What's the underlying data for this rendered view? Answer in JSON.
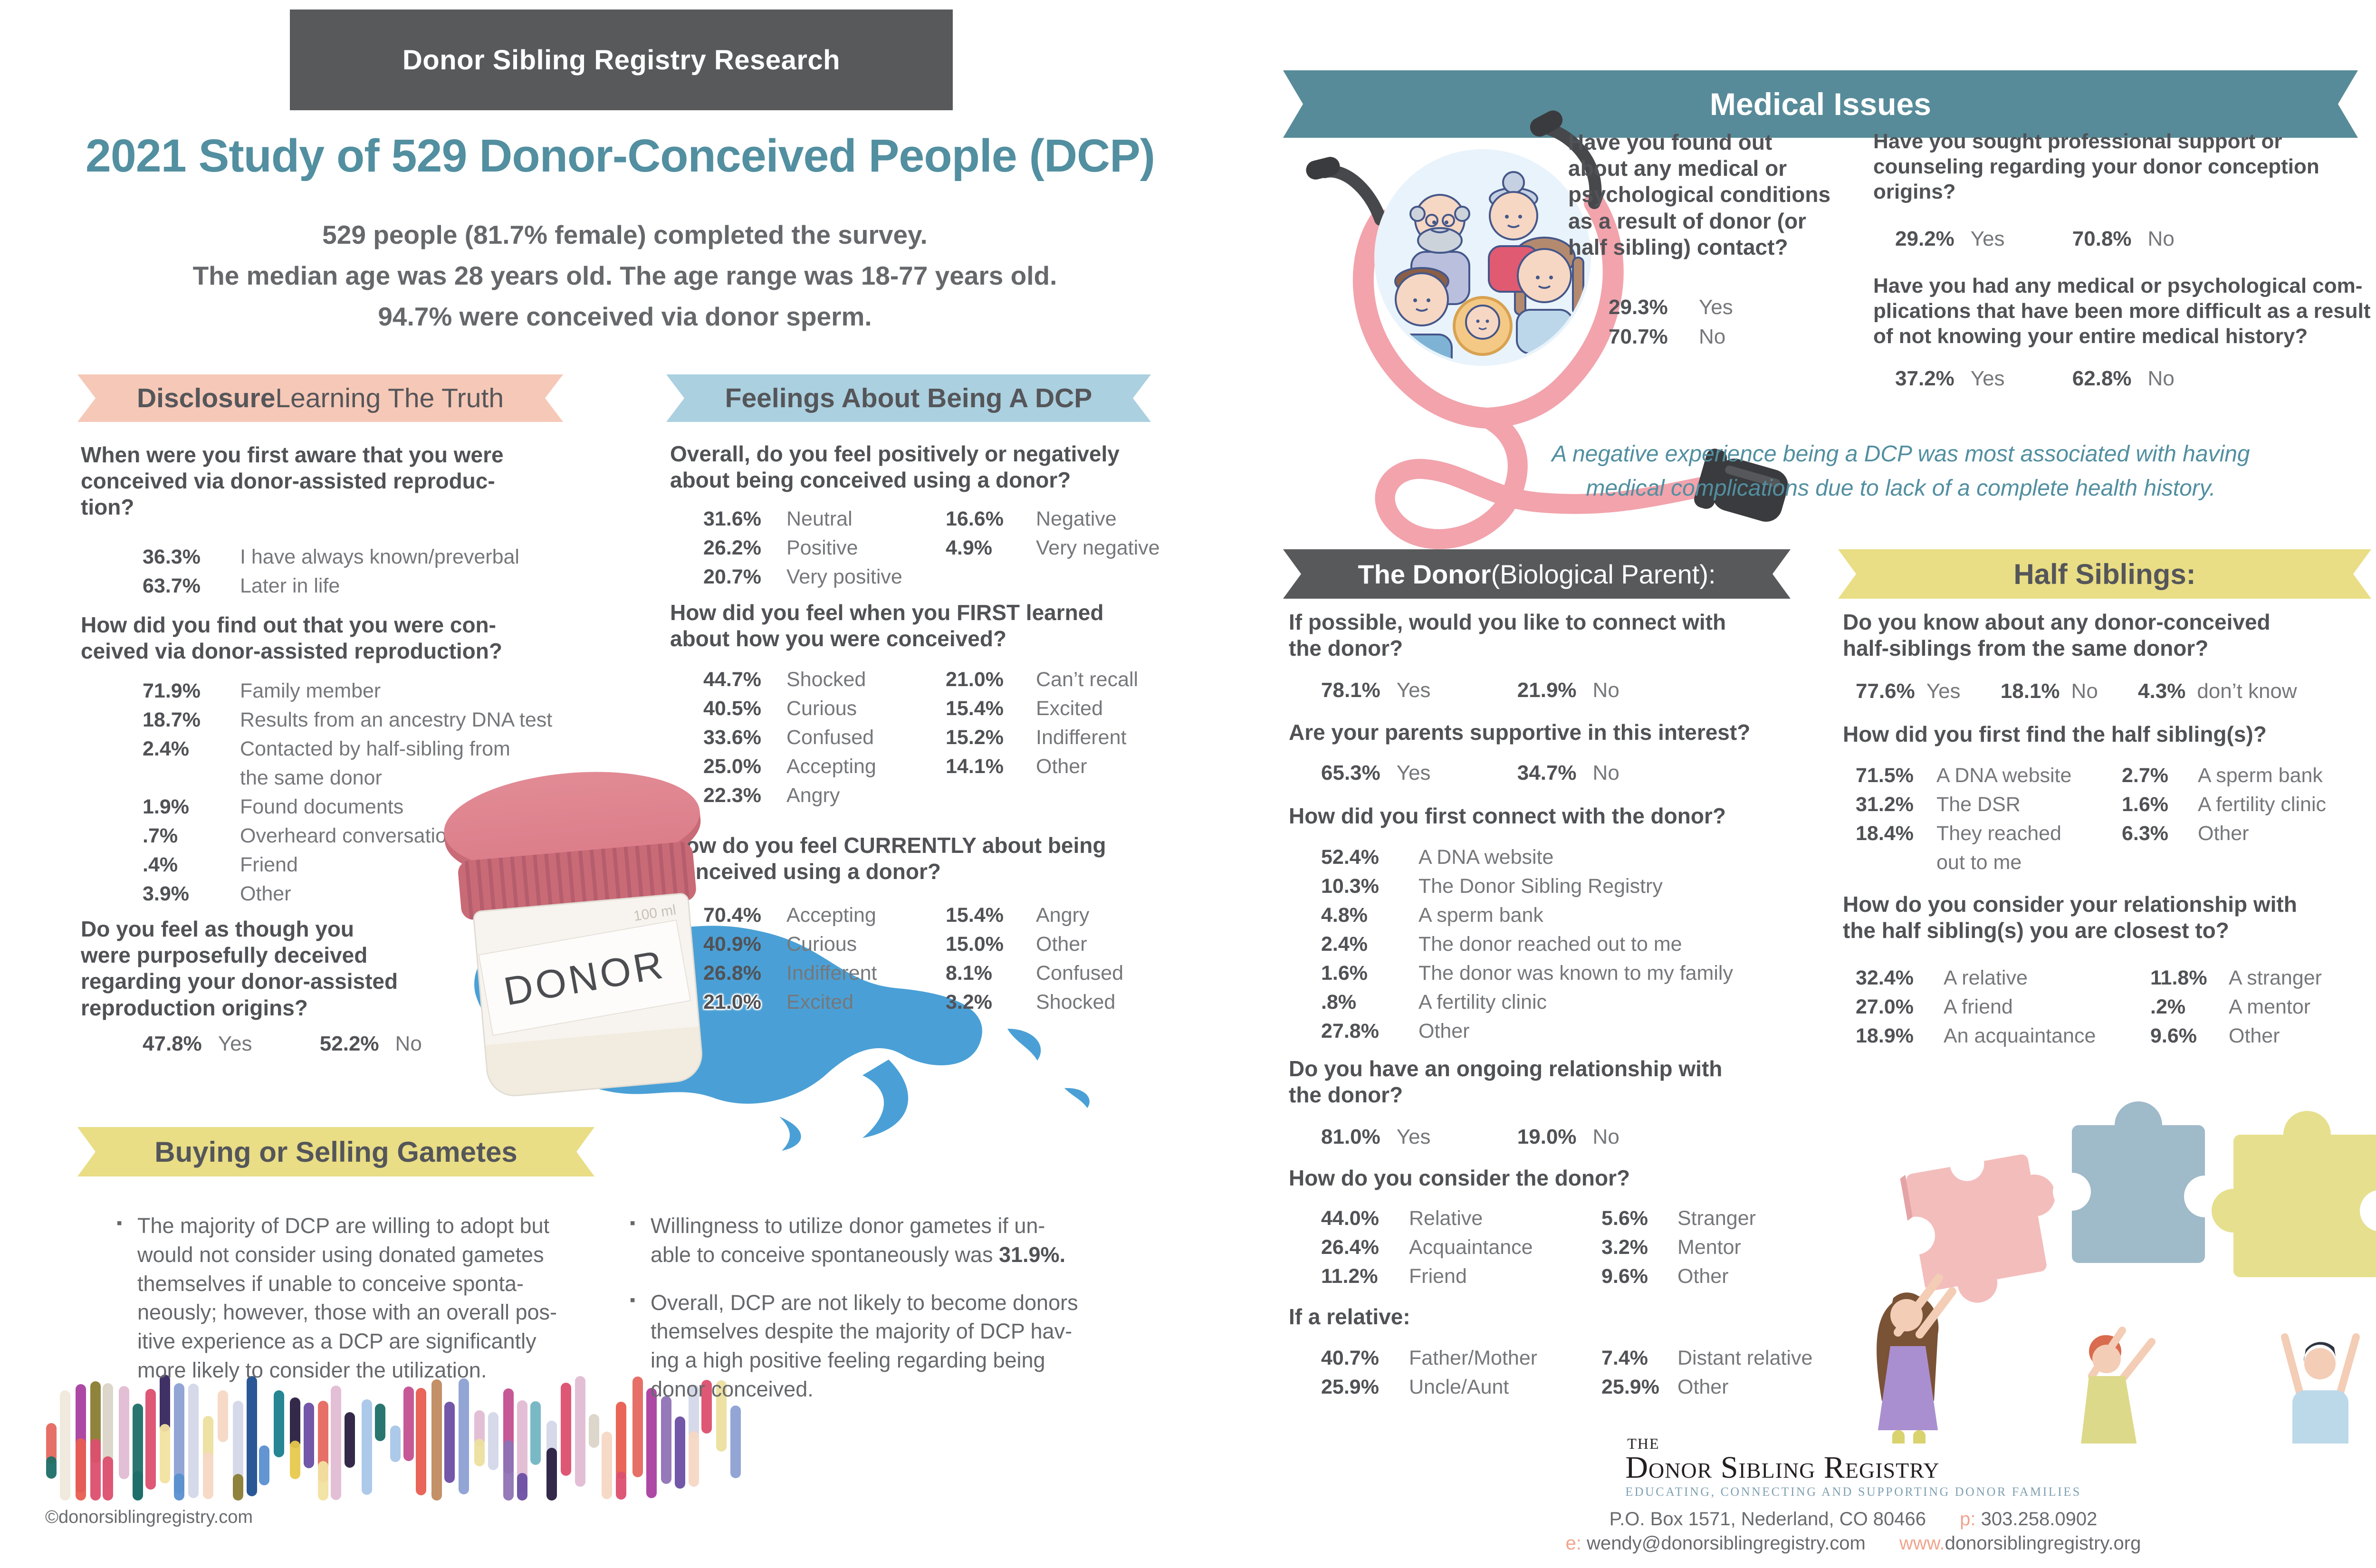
{
  "header": {
    "kicker": "Donor Sibling Registry Research",
    "title": "2021 Study of 529 Donor-Conceived People (DCP)",
    "subtitle": "529 people (81.7% female) completed the survey.\nThe median age was 28 years old.  The age range was 18-77 years old.\n94.7% were conceived via donor sperm."
  },
  "colors": {
    "accent_teal": "#528fa0",
    "ribbon_salmon": "#f6c8b7",
    "ribbon_blue": "#abd0e0",
    "ribbon_yellow": "#e9dd85",
    "ribbon_teal": "#578b99",
    "ribbon_gray": "#58595b",
    "text_dark": "#515256",
    "text_light": "#76777a",
    "splash_blue": "#4aa0d6",
    "dna_palette": [
      "#e7c94c",
      "#dad4c8",
      "#a93fa0",
      "#ecdf9e",
      "#b3bac1",
      "#f3bca4",
      "#e5685f",
      "#6b4ea3",
      "#35265e",
      "#a9c6e8",
      "#8ca0d3",
      "#473a8f",
      "#d3d7e8",
      "#1e6f68",
      "#1a808d",
      "#2a1d40",
      "#8a7d33",
      "#e2bcd4",
      "#c08a5f",
      "#ef9b3f",
      "#f6d8c4",
      "#c44f90",
      "#1f4f90",
      "#72b5c3",
      "#dc4f6f",
      "#efe9dc",
      "#8f72b5",
      "#e85d50",
      "#f2e2a0",
      "#5a8fd0"
    ]
  },
  "disclosure": {
    "banner_bold": "Disclosure",
    "banner_rest": " Learning The Truth",
    "q1": {
      "text": "When were you first aware that you were\nconceived via donor-assisted reproduc-\ntion?",
      "rows": [
        {
          "pct": "36.3%",
          "label": "I have always known/preverbal"
        },
        {
          "pct": "63.7%",
          "label": "Later in life"
        }
      ]
    },
    "q2": {
      "text": "How did you find out that you were con-\nceived via donor-assisted reproduction?",
      "rows": [
        {
          "pct": "71.9%",
          "label": "Family member"
        },
        {
          "pct": "18.7%",
          "label": "Results from an ancestry DNA test"
        },
        {
          "pct": "2.4%",
          "label": "Contacted by half-sibling from\nthe same donor"
        },
        {
          "pct": "1.9%",
          "label": "Found documents"
        },
        {
          "pct": ".7%",
          "label": "Overheard conversation"
        },
        {
          "pct": ".4%",
          "label": "Friend"
        },
        {
          "pct": "3.9%",
          "label": "Other"
        }
      ]
    },
    "q3": {
      "text": "Do you feel as though you\nwere purposefully deceived\nregarding your donor-assisted\nreproduction origins?",
      "rows": [
        {
          "pct": "47.8%",
          "label": "Yes"
        },
        {
          "pct": "52.2%",
          "label": "No"
        }
      ]
    }
  },
  "feelings": {
    "banner": "Feelings About Being A DCP",
    "q1": {
      "text": "Overall, do you feel positively or negatively\nabout being conceived using a donor?",
      "cols": [
        [
          {
            "pct": "31.6%",
            "label": "Neutral"
          },
          {
            "pct": "26.2%",
            "label": "Positive"
          },
          {
            "pct": "20.7%",
            "label": "Very positive"
          }
        ],
        [
          {
            "pct": "16.6%",
            "label": "Negative"
          },
          {
            "pct": "4.9%",
            "label": "Very negative"
          }
        ]
      ]
    },
    "q2": {
      "text": "How did you feel when you FIRST learned\nabout how you were conceived?",
      "cols": [
        [
          {
            "pct": "44.7%",
            "label": "Shocked"
          },
          {
            "pct": "40.5%",
            "label": "Curious"
          },
          {
            "pct": "33.6%",
            "label": "Confused"
          },
          {
            "pct": "25.0%",
            "label": "Accepting"
          },
          {
            "pct": "22.3%",
            "label": "Angry"
          }
        ],
        [
          {
            "pct": "21.0%",
            "label": "Can’t recall"
          },
          {
            "pct": "15.4%",
            "label": "Excited"
          },
          {
            "pct": "15.2%",
            "label": "Indifferent"
          },
          {
            "pct": "14.1%",
            "label": "Other"
          }
        ]
      ]
    },
    "q3": {
      "text": "How do you feel CURRENTLY about being\nconceived using a donor?",
      "cols": [
        [
          {
            "pct": "70.4%",
            "label": "Accepting"
          },
          {
            "pct": "40.9%",
            "label": "Curious"
          },
          {
            "pct": "26.8%",
            "label": "Indifferent"
          },
          {
            "pct": "21.0%",
            "label": "Excited"
          }
        ],
        [
          {
            "pct": "15.4%",
            "label": "Angry"
          },
          {
            "pct": "15.0%",
            "label": "Other"
          },
          {
            "pct": "8.1%",
            "label": "Confused"
          },
          {
            "pct": "3.2%",
            "label": "Shocked"
          }
        ]
      ]
    }
  },
  "gametes": {
    "banner": "Buying or Selling Gametes",
    "bullet1": "The majority of DCP are willing to adopt but\nwould not consider using donated gametes\nthemselves if unable to conceive sponta-\nneously; however, those with an overall pos-\nitive experience as a DCP are significantly\nmore likely to consider the utilization.",
    "bullet2_pre": "Willingness to utilize donor gametes if un-\nable to conceive spontaneously was ",
    "bullet2_strong": "31.9%.",
    "bullet3": "Overall, DCP are not likely to become donors\nthemselves despite the majority of DCP hav-\ning a high positive feeling regarding being\ndonor conceived."
  },
  "medical": {
    "banner": "Medical Issues",
    "q1": {
      "text": "Have you found out\nabout any medical or\npsychological conditions\nas a result of donor (or\nhalf sibling) contact?",
      "rows": [
        {
          "pct": "29.3%",
          "label": "Yes"
        },
        {
          "pct": "70.7%",
          "label": "No"
        }
      ]
    },
    "q2": {
      "text": "Have you sought professional support or\ncounseling regarding your donor conception\norigins?",
      "rows": [
        {
          "pct": "29.2%",
          "label": "Yes"
        },
        {
          "pct": "70.8%",
          "label": "No"
        }
      ]
    },
    "q3": {
      "text": "Have you had any medical or psychological com-\nplications that have been more difficult as a result\nof not knowing your entire medical history?",
      "rows": [
        {
          "pct": "37.2%",
          "label": "Yes"
        },
        {
          "pct": "62.8%",
          "label": "No"
        }
      ]
    },
    "note": "A negative experience being a DCP was most associated with having\nmedical complications due to lack of a complete health history."
  },
  "donor_section": {
    "banner_bold": "The Donor",
    "banner_rest": " (Biological Parent):",
    "q1": {
      "text": "If possible, would you like to connect with\nthe donor?",
      "rows": [
        {
          "pct": "78.1%",
          "label": "Yes"
        },
        {
          "pct": "21.9%",
          "label": "No"
        }
      ]
    },
    "q2": {
      "text": "Are your parents supportive in this interest?",
      "rows": [
        {
          "pct": "65.3%",
          "label": "Yes"
        },
        {
          "pct": "34.7%",
          "label": "No"
        }
      ]
    },
    "q3": {
      "text": "How did you first connect with the donor?",
      "rows": [
        {
          "pct": "52.4%",
          "label": "A DNA website"
        },
        {
          "pct": "10.3%",
          "label": "The Donor Sibling Registry"
        },
        {
          "pct": "4.8%",
          "label": "A sperm bank"
        },
        {
          "pct": "2.4%",
          "label": "The donor reached out to me"
        },
        {
          "pct": "1.6%",
          "label": "The donor was known to my family"
        },
        {
          "pct": ".8%",
          "label": "A fertility clinic"
        },
        {
          "pct": "27.8%",
          "label": "Other"
        }
      ]
    },
    "q4": {
      "text": "Do you have an ongoing relationship with\nthe donor?",
      "rows": [
        {
          "pct": "81.0%",
          "label": "Yes"
        },
        {
          "pct": "19.0%",
          "label": "No"
        }
      ]
    },
    "q5": {
      "text": "How do you consider the donor?",
      "cols": [
        [
          {
            "pct": "44.0%",
            "label": "Relative"
          },
          {
            "pct": "26.4%",
            "label": "Acquaintance"
          },
          {
            "pct": "11.2%",
            "label": "Friend"
          }
        ],
        [
          {
            "pct": "5.6%",
            "label": "Stranger"
          },
          {
            "pct": "3.2%",
            "label": "Mentor"
          },
          {
            "pct": "9.6%",
            "label": "Other"
          }
        ]
      ]
    },
    "q6": {
      "text": "If a relative:",
      "cols": [
        [
          {
            "pct": "40.7%",
            "label": "Father/Mother"
          },
          {
            "pct": "25.9%",
            "label": "Uncle/Aunt"
          }
        ],
        [
          {
            "pct": "7.4%",
            "label": "Distant relative"
          },
          {
            "pct": "25.9%",
            "label": "Other"
          }
        ]
      ]
    }
  },
  "half_siblings": {
    "banner": "Half Siblings:",
    "q1": {
      "text": "Do you know about any donor-conceived\nhalf-siblings from the same donor?",
      "rows": [
        {
          "pct": "77.6%",
          "label": "Yes"
        },
        {
          "pct": "18.1%",
          "label": "No"
        },
        {
          "pct": "4.3%",
          "label": "don’t know"
        }
      ]
    },
    "q2": {
      "text": "How did you first find the half sibling(s)?",
      "cols": [
        [
          {
            "pct": "71.5%",
            "label": "A DNA website"
          },
          {
            "pct": "31.2%",
            "label": "The DSR"
          },
          {
            "pct": "18.4%",
            "label": "They reached\nout to me"
          }
        ],
        [
          {
            "pct": "2.7%",
            "label": "A sperm bank"
          },
          {
            "pct": "1.6%",
            "label": "A fertility clinic"
          },
          {
            "pct": "6.3%",
            "label": "Other"
          }
        ]
      ]
    },
    "q3": {
      "text": "How do you consider your relationship with\nthe half sibling(s) you are closest to?",
      "cols": [
        [
          {
            "pct": "32.4%",
            "label": "A relative"
          },
          {
            "pct": "27.0%",
            "label": "A friend"
          },
          {
            "pct": "18.9%",
            "label": "An acquaintance"
          }
        ],
        [
          {
            "pct": "11.8%",
            "label": "A stranger"
          },
          {
            "pct": ".2%",
            "label": "A mentor"
          },
          {
            "pct": "9.6%",
            "label": "Other"
          }
        ]
      ]
    }
  },
  "illustrations": {
    "cup_label": "DONOR",
    "cup_mark": "100 ml"
  },
  "footer": {
    "logo_the": "THE",
    "logo_name": "Donor Sibling Registry",
    "tagline": "EDUCATING, CONNECTING AND SUPPORTING DONOR FAMILIES",
    "address": "P.O. Box 1571, Nederland, CO 80466",
    "p_label": "p:",
    "phone": "303.258.0902",
    "e_label": "e:",
    "email": "wendy@donorsiblingregistry.com",
    "www_label": "www.",
    "site": "donorsiblingregistry.org",
    "copyright": "©donorsiblingregistry.com"
  }
}
